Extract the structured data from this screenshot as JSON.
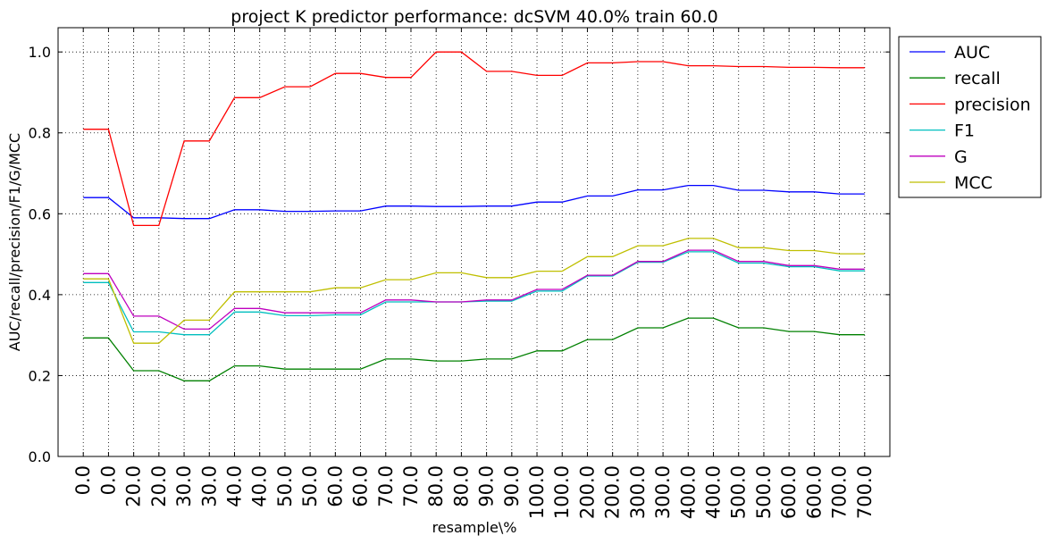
{
  "chart_data": {
    "type": "line",
    "title": "project K predictor performance: dcSVM 40.0% train 60.0",
    "xlabel": "resample\\%",
    "ylabel": "AUC/recall/precision/F1/G/MCC",
    "ylim": [
      0.0,
      1.06
    ],
    "yticks": [
      "0.0",
      "0.2",
      "0.4",
      "0.6",
      "0.8",
      "1.0"
    ],
    "ytick_values": [
      0.0,
      0.2,
      0.4,
      0.6,
      0.8,
      1.0
    ],
    "categories": [
      "0.0",
      "0.0",
      "20.0",
      "20.0",
      "30.0",
      "30.0",
      "40.0",
      "40.0",
      "50.0",
      "50.0",
      "60.0",
      "60.0",
      "70.0",
      "70.0",
      "80.0",
      "80.0",
      "90.0",
      "90.0",
      "100.0",
      "100.0",
      "200.0",
      "200.0",
      "300.0",
      "300.0",
      "400.0",
      "400.0",
      "500.0",
      "500.0",
      "600.0",
      "600.0",
      "700.0",
      "700.0"
    ],
    "grid": true,
    "legend_position": "outside-upper-right",
    "series": [
      {
        "name": "AUC",
        "color": "#0000ff",
        "values": [
          0.64,
          0.64,
          0.59,
          0.59,
          0.588,
          0.588,
          0.61,
          0.61,
          0.606,
          0.606,
          0.607,
          0.607,
          0.619,
          0.619,
          0.618,
          0.618,
          0.619,
          0.619,
          0.629,
          0.629,
          0.644,
          0.644,
          0.659,
          0.659,
          0.67,
          0.67,
          0.658,
          0.658,
          0.654,
          0.654,
          0.649,
          0.649
        ]
      },
      {
        "name": "recall",
        "color": "#008000",
        "values": [
          0.293,
          0.293,
          0.212,
          0.212,
          0.187,
          0.187,
          0.224,
          0.224,
          0.216,
          0.216,
          0.216,
          0.216,
          0.241,
          0.241,
          0.236,
          0.236,
          0.241,
          0.241,
          0.261,
          0.261,
          0.289,
          0.289,
          0.318,
          0.318,
          0.342,
          0.342,
          0.318,
          0.318,
          0.309,
          0.309,
          0.301,
          0.301
        ]
      },
      {
        "name": "precision",
        "color": "#ff0000",
        "values": [
          0.809,
          0.809,
          0.571,
          0.571,
          0.78,
          0.78,
          0.887,
          0.887,
          0.914,
          0.914,
          0.947,
          0.947,
          0.937,
          0.937,
          1.0,
          1.0,
          0.952,
          0.952,
          0.942,
          0.942,
          0.973,
          0.973,
          0.976,
          0.976,
          0.966,
          0.966,
          0.964,
          0.964,
          0.962,
          0.962,
          0.961,
          0.961
        ]
      },
      {
        "name": "F1",
        "color": "#00bfbf",
        "values": [
          0.43,
          0.43,
          0.308,
          0.308,
          0.301,
          0.301,
          0.357,
          0.357,
          0.348,
          0.348,
          0.35,
          0.35,
          0.382,
          0.382,
          0.382,
          0.382,
          0.384,
          0.384,
          0.409,
          0.409,
          0.446,
          0.446,
          0.48,
          0.48,
          0.506,
          0.506,
          0.478,
          0.478,
          0.469,
          0.469,
          0.459,
          0.459
        ]
      },
      {
        "name": "G",
        "color": "#bf00bf",
        "values": [
          0.452,
          0.452,
          0.347,
          0.347,
          0.315,
          0.315,
          0.366,
          0.366,
          0.355,
          0.355,
          0.355,
          0.355,
          0.387,
          0.387,
          0.382,
          0.382,
          0.387,
          0.387,
          0.413,
          0.413,
          0.448,
          0.448,
          0.482,
          0.482,
          0.51,
          0.51,
          0.482,
          0.482,
          0.472,
          0.472,
          0.463,
          0.463
        ]
      },
      {
        "name": "MCC",
        "color": "#bfbf00",
        "values": [
          0.439,
          0.439,
          0.28,
          0.28,
          0.337,
          0.337,
          0.407,
          0.407,
          0.407,
          0.407,
          0.417,
          0.417,
          0.437,
          0.437,
          0.454,
          0.454,
          0.442,
          0.442,
          0.458,
          0.458,
          0.494,
          0.494,
          0.521,
          0.521,
          0.539,
          0.539,
          0.516,
          0.516,
          0.509,
          0.509,
          0.501,
          0.501
        ]
      }
    ]
  }
}
